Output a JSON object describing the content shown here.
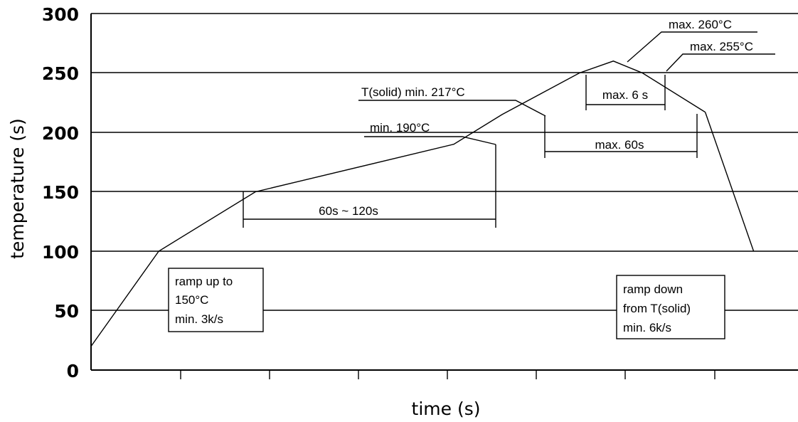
{
  "chart_data": {
    "type": "line",
    "title": "",
    "xlabel": "time (s)",
    "ylabel": "temperature (s)",
    "ylim": [
      0,
      300
    ],
    "yticks": [
      "0",
      "50",
      "100",
      "150",
      "200",
      "250",
      "300"
    ],
    "grid": "horizontal",
    "series": [
      {
        "x": [
          0,
          14,
          34,
          75,
          85,
          101,
          108,
          114,
          127
        ],
        "y": [
          20,
          100,
          150,
          190,
          215,
          250,
          260,
          250,
          217
        ],
        "note": "x values are relative time units (axis has no printed tick labels)"
      },
      {
        "x": [
          127,
          137
        ],
        "y": [
          217,
          100
        ]
      }
    ],
    "annotations": {
      "ramp_up": [
        "ramp up to",
        "150°C",
        "min. 3k/s"
      ],
      "ramp_down": [
        "ramp down",
        "from T(solid)",
        "min. 6k/s"
      ],
      "min190": "min. 190°C",
      "tsolid": "T(solid) min. 217°C",
      "max260": "max. 260°C",
      "max255": "max. 255°C",
      "max6s": "max. 6 s",
      "max60s": "max. 60s",
      "range_60_120": "60s ~ 120s"
    }
  }
}
